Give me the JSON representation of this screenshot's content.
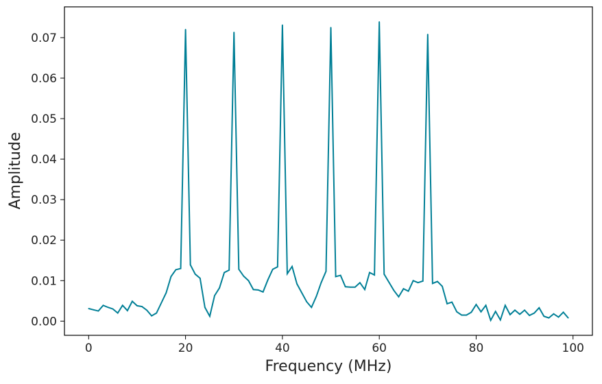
{
  "chart_data": {
    "type": "line",
    "title": "",
    "xlabel": "Frequency (MHz)",
    "ylabel": "Amplitude",
    "xlim": [
      -5,
      104
    ],
    "ylim": [
      -0.0035,
      0.0776
    ],
    "grid": false,
    "legend": "none",
    "x_ticks": [
      0,
      20,
      40,
      60,
      80,
      100
    ],
    "x_tick_labels": [
      "0",
      "20",
      "40",
      "60",
      "80",
      "100"
    ],
    "y_ticks": [
      0.0,
      0.01,
      0.02,
      0.03,
      0.04,
      0.05,
      0.06,
      0.07
    ],
    "y_tick_labels": [
      "0.00",
      "0.01",
      "0.02",
      "0.03",
      "0.04",
      "0.05",
      "0.06",
      "0.07"
    ],
    "colors": {
      "line": "#007f96",
      "axes": "#000000",
      "text": "#222222",
      "background": "#ffffff"
    },
    "series": [
      {
        "x": [
          0,
          1,
          2,
          3,
          4,
          5,
          6,
          7,
          8,
          9,
          10,
          11,
          12,
          13,
          14,
          15,
          16,
          17,
          18,
          19,
          20,
          21,
          22,
          23,
          24,
          25,
          26,
          27,
          28,
          29,
          30,
          31,
          32,
          33,
          34,
          35,
          36,
          37,
          38,
          39,
          40,
          41,
          42,
          43,
          44,
          45,
          46,
          47,
          48,
          49,
          50,
          51,
          52,
          53,
          54,
          55,
          56,
          57,
          58,
          59,
          60,
          61,
          62,
          63,
          64,
          65,
          66,
          67,
          68,
          69,
          70,
          71,
          72,
          73,
          74,
          75,
          76,
          77,
          78,
          79,
          80,
          81,
          82,
          83,
          84,
          85,
          86,
          87,
          88,
          89,
          90,
          91,
          92,
          93,
          94,
          95,
          96,
          97,
          98,
          99
        ],
        "values": [
          0.0031,
          0.0028,
          0.0025,
          0.0039,
          0.0034,
          0.003,
          0.002,
          0.0039,
          0.0026,
          0.0049,
          0.0038,
          0.0036,
          0.0027,
          0.0013,
          0.002,
          0.0045,
          0.007,
          0.011,
          0.0127,
          0.013,
          0.072,
          0.0139,
          0.0116,
          0.0106,
          0.0034,
          0.0012,
          0.0063,
          0.0082,
          0.012,
          0.0126,
          0.0713,
          0.0128,
          0.0111,
          0.01,
          0.0078,
          0.0077,
          0.0072,
          0.0102,
          0.0128,
          0.0134,
          0.0731,
          0.0117,
          0.0135,
          0.0092,
          0.007,
          0.0048,
          0.0034,
          0.0061,
          0.0095,
          0.0123,
          0.0725,
          0.011,
          0.0113,
          0.0085,
          0.0084,
          0.0084,
          0.0095,
          0.0078,
          0.012,
          0.0114,
          0.0739,
          0.0116,
          0.0096,
          0.0076,
          0.006,
          0.008,
          0.0074,
          0.01,
          0.0095,
          0.0099,
          0.0708,
          0.0093,
          0.0098,
          0.0086,
          0.0043,
          0.0047,
          0.0023,
          0.0015,
          0.0015,
          0.0022,
          0.0041,
          0.0023,
          0.0039,
          0.0002,
          0.0024,
          0.0003,
          0.0039,
          0.0016,
          0.0027,
          0.0017,
          0.0027,
          0.0014,
          0.002,
          0.0033,
          0.0012,
          0.0008,
          0.0018,
          0.001,
          0.0022,
          0.0008
        ]
      }
    ]
  }
}
